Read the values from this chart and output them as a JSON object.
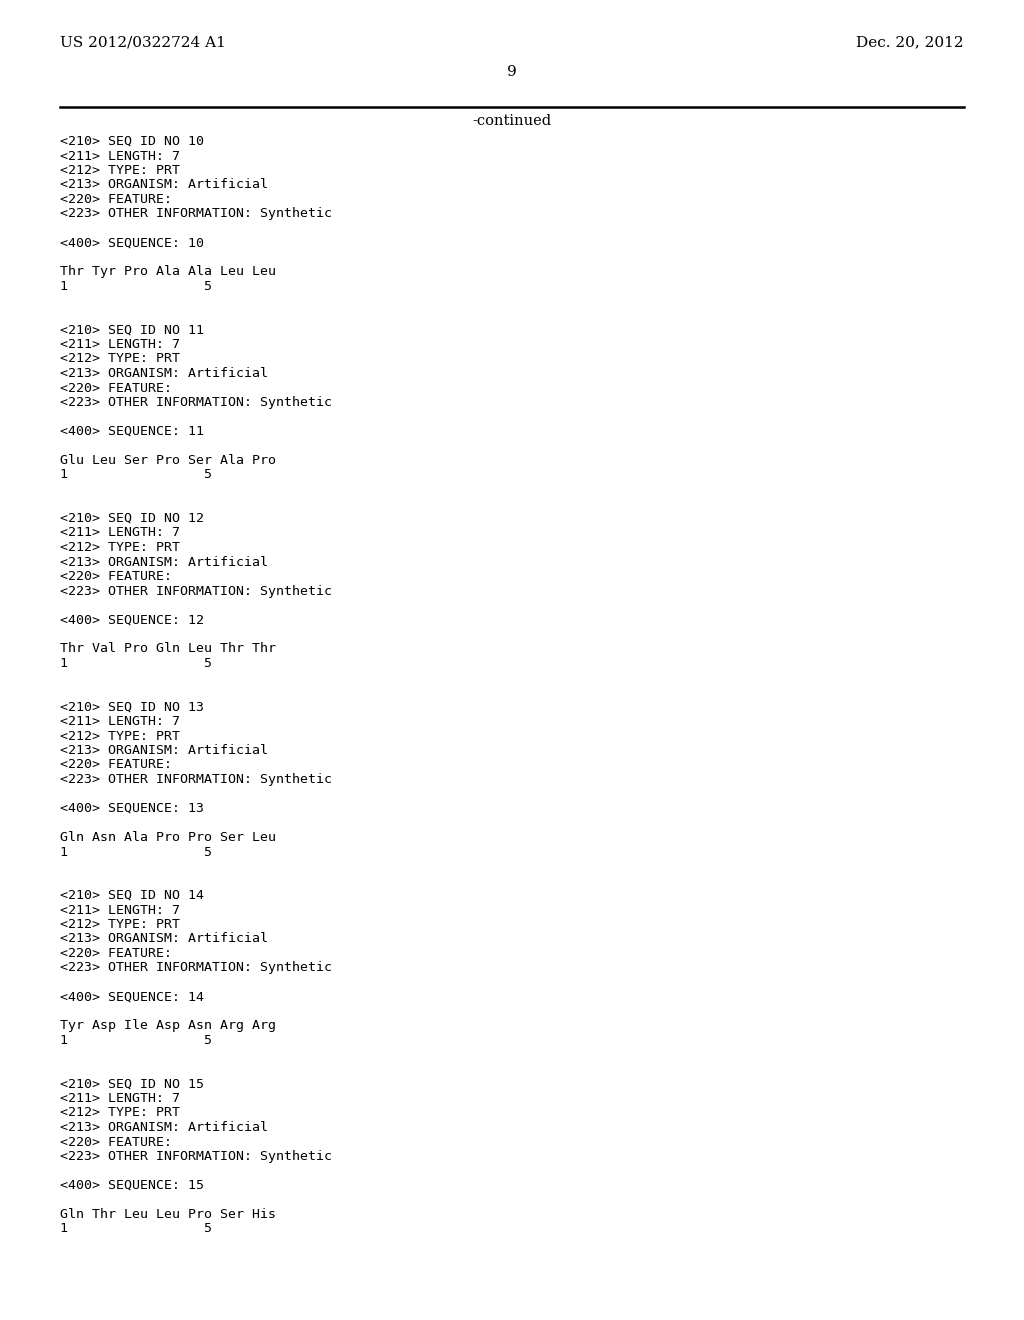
{
  "header_left": "US 2012/0322724 A1",
  "header_right": "Dec. 20, 2012",
  "page_number": "9",
  "continued_label": "-continued",
  "background_color": "#ffffff",
  "text_color": "#000000",
  "line_color": "#000000",
  "header_fontsize": 11.0,
  "page_num_fontsize": 11.0,
  "continued_fontsize": 10.5,
  "mono_fontsize": 9.5,
  "sequences": [
    {
      "seq_id": "10",
      "length": "7",
      "type": "PRT",
      "organism": "Artificial",
      "other_info": "Synthetic",
      "sequence_line": "Thr Tyr Pro Ala Ala Leu Leu",
      "numbers_line": "1                 5"
    },
    {
      "seq_id": "11",
      "length": "7",
      "type": "PRT",
      "organism": "Artificial",
      "other_info": "Synthetic",
      "sequence_line": "Glu Leu Ser Pro Ser Ala Pro",
      "numbers_line": "1                 5"
    },
    {
      "seq_id": "12",
      "length": "7",
      "type": "PRT",
      "organism": "Artificial",
      "other_info": "Synthetic",
      "sequence_line": "Thr Val Pro Gln Leu Thr Thr",
      "numbers_line": "1                 5"
    },
    {
      "seq_id": "13",
      "length": "7",
      "type": "PRT",
      "organism": "Artificial",
      "other_info": "Synthetic",
      "sequence_line": "Gln Asn Ala Pro Pro Ser Leu",
      "numbers_line": "1                 5"
    },
    {
      "seq_id": "14",
      "length": "7",
      "type": "PRT",
      "organism": "Artificial",
      "other_info": "Synthetic",
      "sequence_line": "Tyr Asp Ile Asp Asn Arg Arg",
      "numbers_line": "1                 5"
    },
    {
      "seq_id": "15",
      "length": "7",
      "type": "PRT",
      "organism": "Artificial",
      "other_info": "Synthetic",
      "sequence_line": "Gln Thr Leu Leu Pro Ser His",
      "numbers_line": "1                 5"
    }
  ]
}
